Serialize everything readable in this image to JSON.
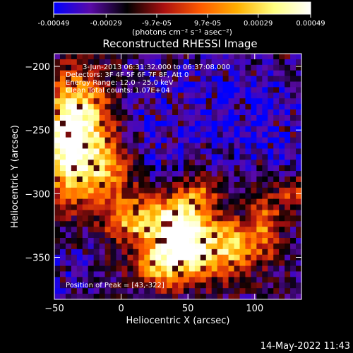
{
  "chart_data": {
    "type": "heatmap",
    "title": "Reconstructed RHESSI Image",
    "xlabel": "Heliocentric X (arcsec)",
    "ylabel": "Heliocentric Y (arcsec)",
    "xlim": [
      -50,
      135
    ],
    "ylim": [
      -383,
      -190
    ],
    "x_ticks": [
      -50,
      0,
      50,
      100
    ],
    "y_ticks": [
      -200,
      -250,
      -300,
      -350
    ],
    "colorbar": {
      "min": -0.00049,
      "max": 0.00049,
      "tick_values": [
        -0.00049,
        -0.00029,
        -9.7e-05,
        9.7e-05,
        0.00029,
        0.00049
      ],
      "tick_labels": [
        "-0.00049",
        "-0.00029",
        "-9.7e-05",
        "9.7e-05",
        "0.00029",
        "0.00049"
      ],
      "units_label": "(photons cm⁻² s⁻¹ asec⁻²)",
      "colormap": [
        "#0000ff",
        "#5a0aa8",
        "#000000",
        "#aa1010",
        "#ff5a00",
        "#ffb000",
        "#ffff80",
        "#ffffff"
      ]
    },
    "annotations": [
      "3-Jun-2013 06:31:32.000 to 06:37:08.000",
      "Detectors: 3F 4F 5F 6F 7F 8F, Att 0",
      "Energy Range: 12.0 - 25.0 keV",
      "Clean     Total counts: 1.07E+04"
    ],
    "peak_label": "Position of Peak = [43,-322]",
    "peak": [
      43,
      -322
    ],
    "bright_regions": [
      {
        "x": -28,
        "y": -245,
        "sx": 16,
        "sy": 26,
        "amp": 1.0
      },
      {
        "x": -42,
        "y": -260,
        "sx": 10,
        "sy": 30,
        "amp": 0.8
      },
      {
        "x": -15,
        "y": -285,
        "sx": 18,
        "sy": 18,
        "amp": 0.7
      },
      {
        "x": 10,
        "y": -322,
        "sx": 14,
        "sy": 12,
        "amp": 0.85
      },
      {
        "x": 43,
        "y": -322,
        "sx": 14,
        "sy": 14,
        "amp": 1.1
      },
      {
        "x": 55,
        "y": -345,
        "sx": 18,
        "sy": 16,
        "amp": 1.0
      },
      {
        "x": 30,
        "y": -355,
        "sx": 14,
        "sy": 12,
        "amp": 0.8
      },
      {
        "x": 85,
        "y": -340,
        "sx": 10,
        "sy": 14,
        "amp": 0.7
      },
      {
        "x": 108,
        "y": -325,
        "sx": 8,
        "sy": 20,
        "amp": 0.6
      },
      {
        "x": 130,
        "y": -300,
        "sx": 8,
        "sy": 10,
        "amp": 0.5
      },
      {
        "x": 60,
        "y": -300,
        "sx": 12,
        "sy": 10,
        "amp": 0.5
      }
    ],
    "dark_regions": [
      {
        "x": 75,
        "y": -230,
        "sx": 40,
        "sy": 30,
        "amp": 1.0
      },
      {
        "x": 20,
        "y": -260,
        "sx": 20,
        "sy": 25,
        "amp": 0.7
      },
      {
        "x": 120,
        "y": -260,
        "sx": 20,
        "sy": 25,
        "amp": 0.7
      },
      {
        "x": -40,
        "y": -360,
        "sx": 14,
        "sy": 18,
        "amp": 0.6
      }
    ]
  },
  "footer": {
    "timestamp": "14-May-2022 11:43"
  }
}
